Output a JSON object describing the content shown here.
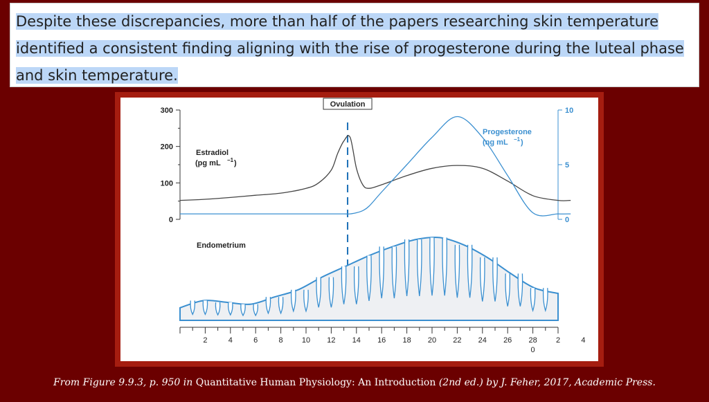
{
  "paragraph": {
    "line1": "Despite these discrepancies, more than half of the papers researching skin temperature",
    "line2": "identified a consistent finding aligning with the rise of progesterone during the luteal phase",
    "line3": "and skin temperature."
  },
  "caption": {
    "prefix": "From Figure 9.9.3, p. 950 in ",
    "book": "Quantitative Human Physiology: An Introduction",
    "suffix": " (2nd ed.) by J. Feher, 2017, Academic Press."
  },
  "chart_data": {
    "type": "line",
    "title": "",
    "annotation": "Ovulation",
    "x_ticks": [
      "2",
      "4",
      "6",
      "8",
      "10",
      "12",
      "14",
      "16",
      "18",
      "20",
      "22",
      "24",
      "26",
      "28",
      "2",
      "4"
    ],
    "x_sublabel": "0",
    "x": [
      0,
      2,
      4,
      6,
      8,
      10,
      11,
      12,
      12.5,
      13,
      13.5,
      14,
      14.5,
      15,
      16,
      18,
      20,
      22,
      24,
      26,
      28,
      30,
      31
    ],
    "y_left": {
      "ticks": [
        "0",
        "100",
        "200",
        "300"
      ],
      "ylim": [
        0,
        300
      ],
      "label": "Estradiol",
      "unit": "(pg mL",
      "unit_sup": "−1",
      "unit_close": ")"
    },
    "y_right": {
      "ticks": [
        "0",
        "5",
        "10"
      ],
      "ylim": [
        0,
        10
      ],
      "label": "Progesterone",
      "unit": "(ng mL",
      "unit_sup": "−1",
      "unit_close": ")",
      "color": "#3a8fd0"
    },
    "series": [
      {
        "name": "Estradiol",
        "axis": "left",
        "color": "#444444",
        "values": [
          52,
          55,
          60,
          66,
          72,
          85,
          100,
          135,
          180,
          215,
          225,
          140,
          95,
          85,
          95,
          120,
          140,
          148,
          140,
          105,
          65,
          52,
          52
        ]
      },
      {
        "name": "Progesterone",
        "axis": "right",
        "color": "#3a8fd0",
        "values": [
          0.5,
          0.5,
          0.5,
          0.5,
          0.5,
          0.5,
          0.5,
          0.5,
          0.5,
          0.5,
          0.5,
          0.6,
          0.8,
          1.2,
          2.5,
          5.0,
          7.5,
          9.4,
          7.5,
          4.0,
          0.6,
          0.5,
          0.5
        ]
      }
    ],
    "endometrium_label": "Endometrium",
    "endometrium_thickness": [
      14,
      22,
      20,
      18,
      26,
      34,
      48,
      60,
      72,
      82,
      90,
      92,
      84,
      70,
      52,
      36,
      30
    ],
    "grid": false
  }
}
